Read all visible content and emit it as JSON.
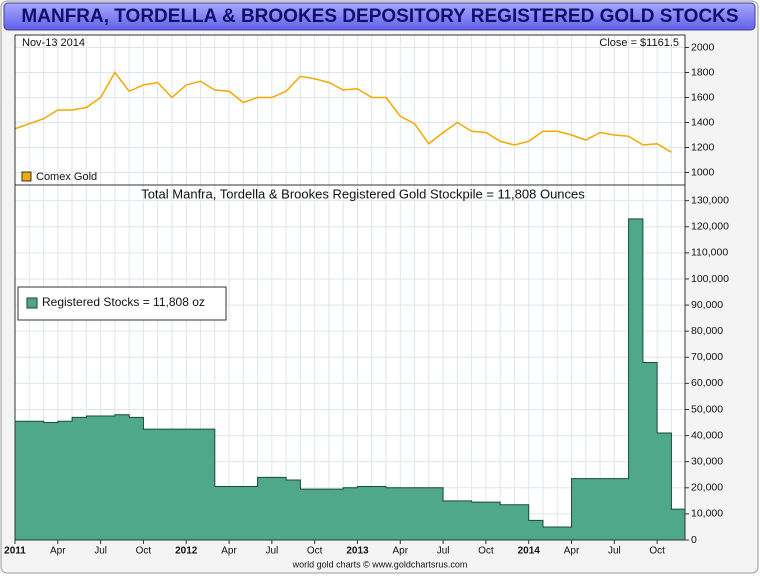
{
  "title": "MANFRA, TORDELLA & BROOKES DEPOSITORY REGISTERED GOLD STOCKS",
  "footer": "world gold charts © www.goldchartsrus.com",
  "chart_data": [
    {
      "type": "line",
      "date_label": "Nov-13  2014",
      "close_label": "Close = $1161.5",
      "x": [
        "2011-01",
        "2011-02",
        "2011-03",
        "2011-04",
        "2011-05",
        "2011-06",
        "2011-07",
        "2011-08",
        "2011-09",
        "2011-10",
        "2011-11",
        "2011-12",
        "2012-01",
        "2012-02",
        "2012-03",
        "2012-04",
        "2012-05",
        "2012-06",
        "2012-07",
        "2012-08",
        "2012-09",
        "2012-10",
        "2012-11",
        "2012-12",
        "2013-01",
        "2013-02",
        "2013-03",
        "2013-04",
        "2013-05",
        "2013-06",
        "2013-07",
        "2013-08",
        "2013-09",
        "2013-10",
        "2013-11",
        "2013-12",
        "2014-01",
        "2014-02",
        "2014-03",
        "2014-04",
        "2014-05",
        "2014-06",
        "2014-07",
        "2014-08",
        "2014-09",
        "2014-10",
        "2014-11"
      ],
      "series": [
        {
          "name": "Comex Gold",
          "color": "#f5a800",
          "values": [
            1350,
            1390,
            1430,
            1500,
            1500,
            1520,
            1600,
            1800,
            1650,
            1700,
            1720,
            1600,
            1700,
            1730,
            1660,
            1650,
            1560,
            1600,
            1600,
            1650,
            1770,
            1750,
            1720,
            1660,
            1670,
            1600,
            1600,
            1450,
            1390,
            1230,
            1320,
            1400,
            1330,
            1320,
            1250,
            1220,
            1250,
            1330,
            1330,
            1300,
            1260,
            1320,
            1300,
            1290,
            1220,
            1230,
            1161.5
          ]
        }
      ],
      "ylim": [
        900,
        2100
      ],
      "yticks": [
        1000,
        1200,
        1400,
        1600,
        1800,
        2000
      ],
      "grid": true
    },
    {
      "type": "area",
      "title": "Total Manfra, Tordella & Brookes Registered Gold Stockpile = 11,808 Ounces",
      "x": [
        "2011-01",
        "2011-02",
        "2011-03",
        "2011-04",
        "2011-05",
        "2011-06",
        "2011-07",
        "2011-08",
        "2011-09",
        "2011-10",
        "2011-11",
        "2011-12",
        "2012-01",
        "2012-02",
        "2012-03",
        "2012-04",
        "2012-05",
        "2012-06",
        "2012-07",
        "2012-08",
        "2012-09",
        "2012-10",
        "2012-11",
        "2012-12",
        "2013-01",
        "2013-02",
        "2013-03",
        "2013-04",
        "2013-05",
        "2013-06",
        "2013-07",
        "2013-08",
        "2013-09",
        "2013-10",
        "2013-11",
        "2013-12",
        "2014-01",
        "2014-02",
        "2014-03",
        "2014-04",
        "2014-05",
        "2014-06",
        "2014-07",
        "2014-08",
        "2014-09",
        "2014-10",
        "2014-11"
      ],
      "series": [
        {
          "name": "Registered Stocks = 11,808 oz",
          "color": "#4fa88a",
          "values": [
            45500,
            45500,
            45000,
            45500,
            47000,
            47500,
            47500,
            48000,
            47000,
            42500,
            42500,
            42500,
            42500,
            42500,
            20500,
            20500,
            20500,
            24000,
            24000,
            23000,
            19500,
            19500,
            19500,
            20000,
            20500,
            20500,
            20000,
            20000,
            20000,
            20000,
            15000,
            15000,
            14500,
            14500,
            13500,
            13500,
            7500,
            5000,
            5000,
            23500,
            23500,
            23500,
            23500,
            123000,
            68000,
            41000,
            11808
          ]
        }
      ],
      "ylim": [
        0,
        136000
      ],
      "yticks": [
        0,
        {
          "value": 10000,
          "label": "10,000"
        },
        {
          "value": 20000,
          "label": "20,000"
        },
        {
          "value": 30000,
          "label": "30,000"
        },
        {
          "value": 40000,
          "label": "40,000"
        },
        {
          "value": 50000,
          "label": "50,000"
        },
        {
          "value": 60000,
          "label": "60,000"
        },
        {
          "value": 70000,
          "label": "70,000"
        },
        {
          "value": 80000,
          "label": "80,000"
        },
        {
          "value": 90000,
          "label": "90,000"
        },
        {
          "value": 100000,
          "label": "100,000"
        },
        {
          "value": 110000,
          "label": "110,000"
        },
        {
          "value": 120000,
          "label": "120,000"
        },
        {
          "value": 130000,
          "label": "130,000"
        }
      ],
      "xticks": [
        {
          "value": "2011-01",
          "label": "2011"
        },
        {
          "value": "2011-04",
          "label": "Apr"
        },
        {
          "value": "2011-07",
          "label": "Jul"
        },
        {
          "value": "2011-10",
          "label": "Oct"
        },
        {
          "value": "2012-01",
          "label": "2012"
        },
        {
          "value": "2012-04",
          "label": "Apr"
        },
        {
          "value": "2012-07",
          "label": "Jul"
        },
        {
          "value": "2012-10",
          "label": "Oct"
        },
        {
          "value": "2013-01",
          "label": "2013"
        },
        {
          "value": "2013-04",
          "label": "Apr"
        },
        {
          "value": "2013-07",
          "label": "Jul"
        },
        {
          "value": "2013-10",
          "label": "Oct"
        },
        {
          "value": "2014-01",
          "label": "2014"
        },
        {
          "value": "2014-04",
          "label": "Apr"
        },
        {
          "value": "2014-07",
          "label": "Jul"
        },
        {
          "value": "2014-10",
          "label": "Oct"
        }
      ],
      "grid": true
    }
  ]
}
